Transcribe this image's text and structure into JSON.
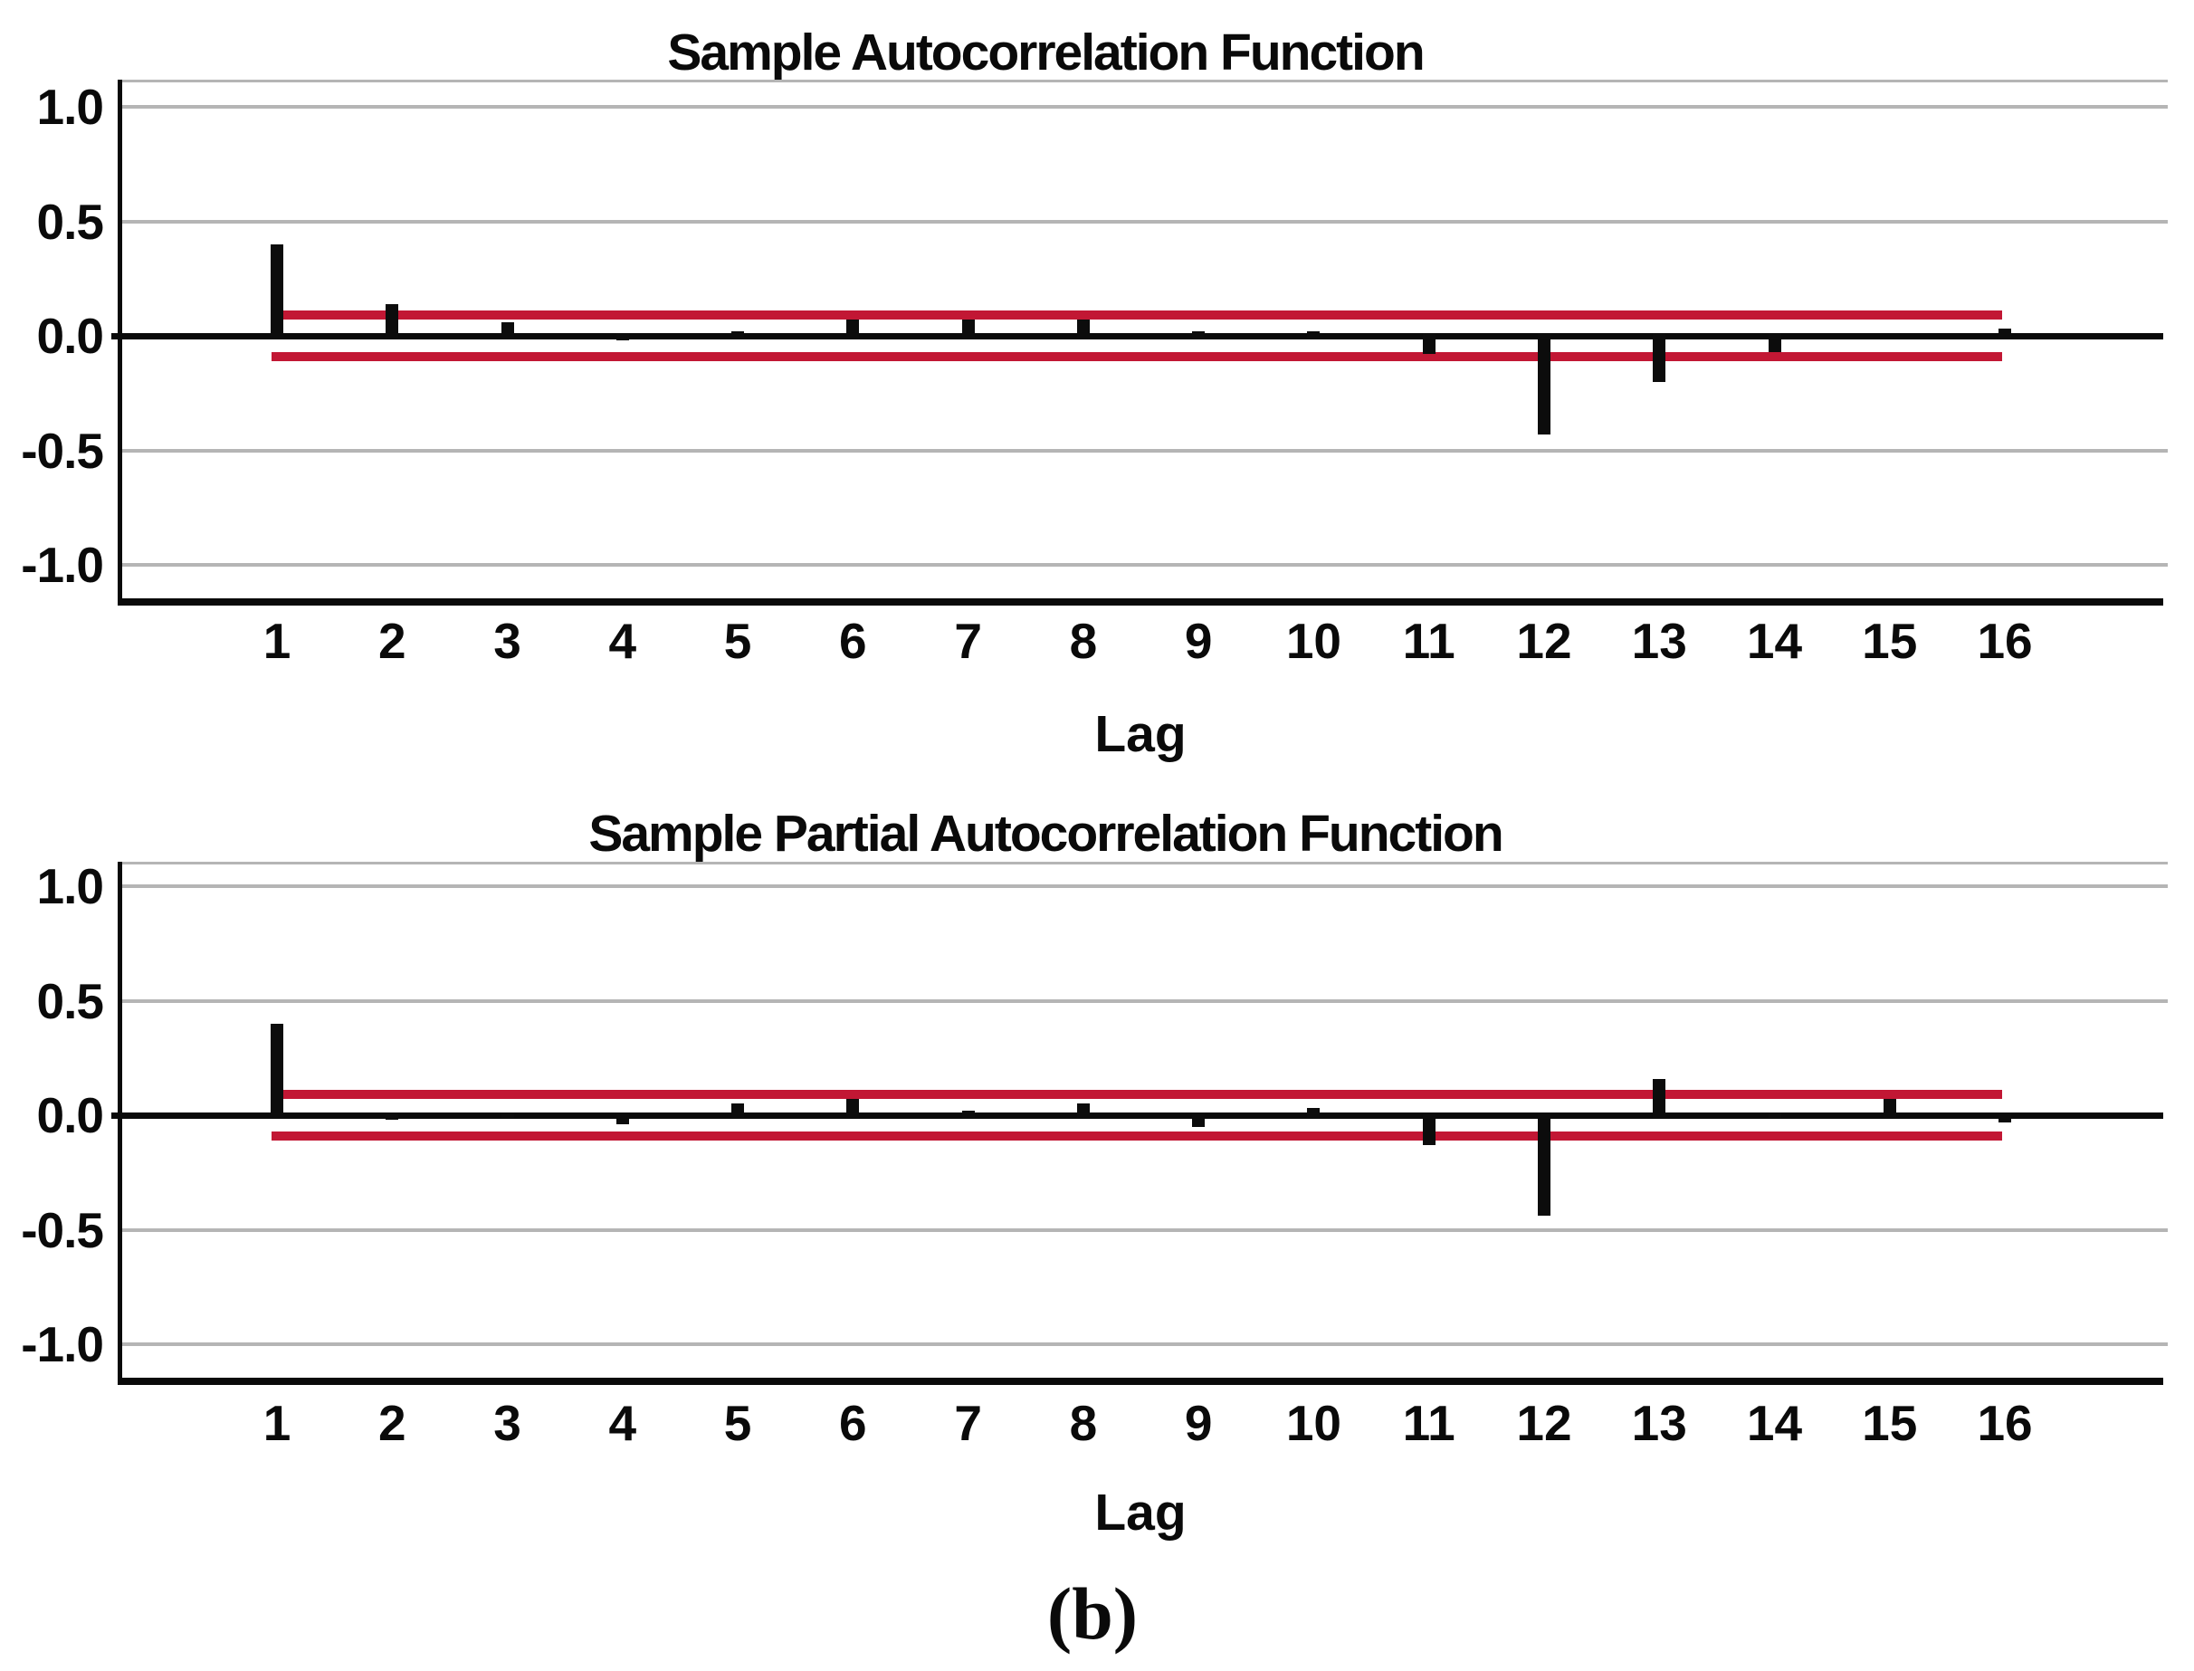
{
  "caption": "(b)",
  "colors": {
    "bar": "#0c0c0c",
    "confidence_line": "#c21734",
    "gridline": "#b5b5b5",
    "axis": "#0a0a0a"
  },
  "chart_data": [
    {
      "type": "bar",
      "title": "Sample Autocorrelation Function",
      "xlabel": "Lag",
      "ylabel": "",
      "x": [
        1,
        2,
        3,
        4,
        5,
        6,
        7,
        8,
        9,
        10,
        11,
        12,
        13,
        14,
        15,
        16
      ],
      "values": [
        0.4,
        0.14,
        0.06,
        -0.02,
        0.02,
        0.07,
        0.07,
        0.07,
        0.02,
        0.02,
        -0.08,
        -0.43,
        -0.2,
        -0.07,
        0.0,
        0.03
      ],
      "confidence_upper": 0.09,
      "confidence_lower": -0.09,
      "ylim": [
        -1.15,
        1.13
      ],
      "yticks": [
        1.0,
        0.5,
        -0.5,
        -1.0
      ],
      "ytick_labels": [
        "1.0",
        "0.5",
        "-0.5",
        "-1.0"
      ],
      "zero_tick_label": "0.0",
      "grid": true,
      "legend": "none"
    },
    {
      "type": "bar",
      "title": "Sample Partial Autocorrelation Function",
      "xlabel": "Lag",
      "ylabel": "",
      "x": [
        1,
        2,
        3,
        4,
        5,
        6,
        7,
        8,
        9,
        10,
        11,
        12,
        13,
        14,
        15,
        16
      ],
      "values": [
        0.4,
        -0.02,
        0.01,
        -0.04,
        0.05,
        0.07,
        0.02,
        0.05,
        -0.05,
        0.03,
        -0.13,
        -0.44,
        0.16,
        -0.01,
        0.07,
        -0.03
      ],
      "confidence_upper": 0.09,
      "confidence_lower": -0.09,
      "ylim": [
        -1.15,
        1.13
      ],
      "yticks": [
        1.0,
        0.5,
        -0.5,
        -1.0
      ],
      "ytick_labels": [
        "1.0",
        "0.5",
        "-0.5",
        "-1.0"
      ],
      "zero_tick_label": "0.0",
      "grid": true,
      "legend": "none"
    }
  ]
}
